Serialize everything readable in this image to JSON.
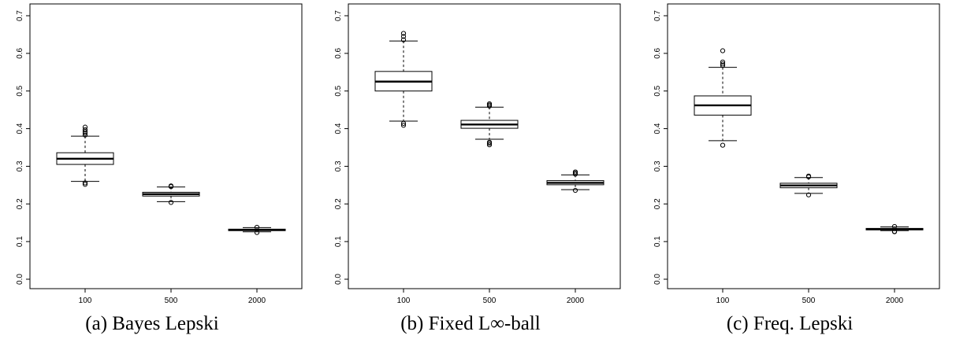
{
  "chart_data": [
    {
      "type": "boxplot",
      "caption_tag": "(a)",
      "caption_title": "Bayes Lepski",
      "categories": [
        "100",
        "500",
        "2000"
      ],
      "ylim": [
        0,
        0.72
      ],
      "yticks": [
        "0.0",
        "0.1",
        "0.2",
        "0.3",
        "0.4",
        "0.5",
        "0.6",
        "0.7"
      ],
      "boxes": [
        {
          "whisker_low": 0.26,
          "q1": 0.305,
          "median": 0.32,
          "q3": 0.336,
          "whisker_high": 0.38,
          "outliers": [
            0.252,
            0.256,
            0.383,
            0.388,
            0.392,
            0.397,
            0.404
          ]
        },
        {
          "whisker_low": 0.206,
          "q1": 0.221,
          "median": 0.226,
          "q3": 0.231,
          "whisker_high": 0.245,
          "outliers": [
            0.204,
            0.246,
            0.248
          ]
        },
        {
          "whisker_low": 0.126,
          "q1": 0.129,
          "median": 0.131,
          "q3": 0.133,
          "whisker_high": 0.137,
          "outliers": [
            0.124,
            0.138
          ]
        }
      ]
    },
    {
      "type": "boxplot",
      "caption_tag": "(b)",
      "caption_title": "Fixed L∞-ball",
      "categories": [
        "100",
        "500",
        "2000"
      ],
      "ylim": [
        0,
        0.72
      ],
      "yticks": [
        "0.0",
        "0.1",
        "0.2",
        "0.3",
        "0.4",
        "0.5",
        "0.6",
        "0.7"
      ],
      "boxes": [
        {
          "whisker_low": 0.42,
          "q1": 0.5,
          "median": 0.525,
          "q3": 0.552,
          "whisker_high": 0.633,
          "outliers": [
            0.409,
            0.414,
            0.636,
            0.645,
            0.653
          ]
        },
        {
          "whisker_low": 0.372,
          "q1": 0.401,
          "median": 0.411,
          "q3": 0.422,
          "whisker_high": 0.457,
          "outliers": [
            0.357,
            0.361,
            0.364,
            0.46,
            0.463,
            0.466
          ]
        },
        {
          "whisker_low": 0.238,
          "q1": 0.251,
          "median": 0.256,
          "q3": 0.262,
          "whisker_high": 0.277,
          "outliers": [
            0.236,
            0.279,
            0.282,
            0.285
          ]
        }
      ]
    },
    {
      "type": "boxplot",
      "caption_tag": "(c)",
      "caption_title": "Freq. Lepski",
      "categories": [
        "100",
        "500",
        "2000"
      ],
      "ylim": [
        0,
        0.72
      ],
      "yticks": [
        "0.0",
        "0.1",
        "0.2",
        "0.3",
        "0.4",
        "0.5",
        "0.6",
        "0.7"
      ],
      "boxes": [
        {
          "whisker_low": 0.368,
          "q1": 0.436,
          "median": 0.462,
          "q3": 0.487,
          "whisker_high": 0.563,
          "outliers": [
            0.356,
            0.568,
            0.572,
            0.577,
            0.607
          ]
        },
        {
          "whisker_low": 0.228,
          "q1": 0.243,
          "median": 0.249,
          "q3": 0.255,
          "whisker_high": 0.27,
          "outliers": [
            0.224,
            0.272,
            0.274
          ]
        },
        {
          "whisker_low": 0.129,
          "q1": 0.131,
          "median": 0.133,
          "q3": 0.135,
          "whisker_high": 0.139,
          "outliers": [
            0.126,
            0.127,
            0.14
          ]
        }
      ]
    }
  ]
}
